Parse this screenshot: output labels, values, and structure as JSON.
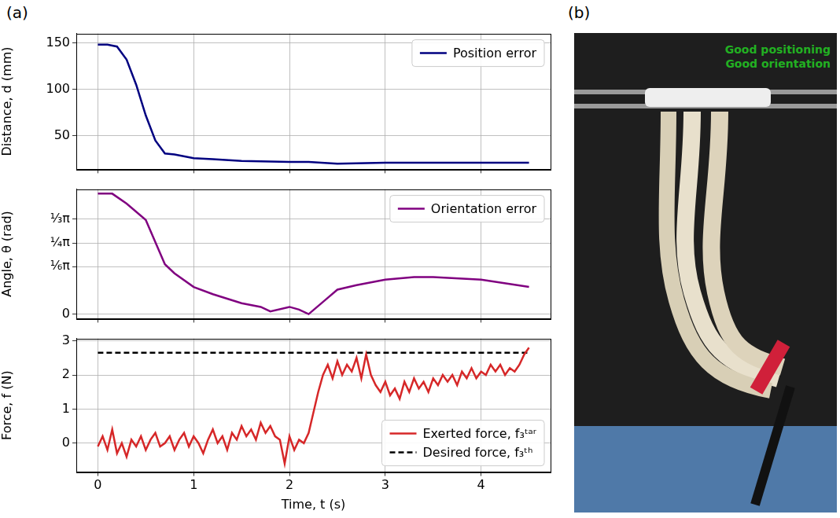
{
  "panel_labels": [
    "(a)",
    "(b)"
  ],
  "photo": {
    "texts": [
      "Good positioning",
      "Good orientation"
    ],
    "color": "#22b022"
  },
  "chart_data": [
    {
      "type": "line",
      "y_label": "Distance, d (mm)",
      "xlim": [
        -0.225,
        4.725
      ],
      "xticks": [
        0,
        1,
        2,
        3,
        4
      ],
      "ylim": [
        14,
        160
      ],
      "yticks": [
        50,
        100,
        150
      ],
      "grid": true,
      "legend": "upper right",
      "tick_labels": "y",
      "series": [
        {
          "name": "Position error",
          "color": "#000080",
          "line_style": "solid",
          "x": [
            0,
            0.1,
            0.2,
            0.3,
            0.4,
            0.5,
            0.6,
            0.7,
            0.8,
            1.0,
            1.2,
            1.5,
            2.0,
            2.2,
            2.5,
            3.0,
            3.5,
            4.0,
            4.5
          ],
          "values": [
            148,
            148,
            146,
            132,
            105,
            72,
            45,
            31,
            30,
            26,
            25,
            23,
            22,
            22,
            20,
            21,
            21,
            21,
            21
          ]
        }
      ]
    },
    {
      "type": "line",
      "y_label": "Angle, θ (rad)",
      "xlim": [
        -0.225,
        4.725
      ],
      "xticks": [
        0,
        1,
        2,
        3,
        4
      ],
      "ylim": [
        -0.05,
        1.38
      ],
      "yticks": [
        0,
        {
          "value": 0.5236,
          "label": "⅙π"
        },
        {
          "value": 0.7854,
          "label": "¼π"
        },
        {
          "value": 1.0472,
          "label": "⅓π"
        }
      ],
      "grid": true,
      "legend": "upper right",
      "tick_labels": "y",
      "series": [
        {
          "name": "Orientation error",
          "color": "#800080",
          "line_style": "solid",
          "x": [
            0,
            0.15,
            0.3,
            0.5,
            0.7,
            0.8,
            1.0,
            1.2,
            1.5,
            1.7,
            1.8,
            2.0,
            2.1,
            2.2,
            2.4,
            2.5,
            2.7,
            3.0,
            3.3,
            3.5,
            4.0,
            4.5
          ],
          "values": [
            1.33,
            1.33,
            1.22,
            1.04,
            0.55,
            0.45,
            0.3,
            0.22,
            0.12,
            0.08,
            0.03,
            0.08,
            0.05,
            0.0,
            0.18,
            0.27,
            0.32,
            0.38,
            0.41,
            0.41,
            0.38,
            0.3
          ]
        }
      ]
    },
    {
      "type": "line",
      "x_label": "Time, t (s)",
      "y_label": "Force, f (N)",
      "xlim": [
        -0.225,
        4.725
      ],
      "xticks": [
        0,
        1,
        2,
        3,
        4
      ],
      "ylim": [
        -0.85,
        3.07
      ],
      "yticks": [
        0,
        1,
        2,
        3
      ],
      "grid": true,
      "legend": "lower right",
      "series": [
        {
          "name": "Exerted force, f₃ᵗᵃʳ",
          "color": "#d62728",
          "line_style": "solid",
          "x": [
            0,
            0.05,
            0.1,
            0.15,
            0.2,
            0.25,
            0.3,
            0.35,
            0.4,
            0.45,
            0.5,
            0.55,
            0.6,
            0.65,
            0.7,
            0.75,
            0.8,
            0.85,
            0.9,
            0.95,
            1.0,
            1.05,
            1.1,
            1.15,
            1.2,
            1.25,
            1.3,
            1.35,
            1.4,
            1.45,
            1.5,
            1.55,
            1.6,
            1.65,
            1.7,
            1.75,
            1.8,
            1.85,
            1.9,
            1.95,
            2.0,
            2.05,
            2.1,
            2.15,
            2.2,
            2.25,
            2.3,
            2.35,
            2.4,
            2.45,
            2.5,
            2.55,
            2.6,
            2.65,
            2.7,
            2.75,
            2.8,
            2.85,
            2.9,
            2.95,
            3.0,
            3.05,
            3.1,
            3.15,
            3.2,
            3.25,
            3.3,
            3.35,
            3.4,
            3.45,
            3.5,
            3.55,
            3.6,
            3.65,
            3.7,
            3.75,
            3.8,
            3.85,
            3.9,
            3.95,
            4.0,
            4.05,
            4.1,
            4.15,
            4.2,
            4.25,
            4.3,
            4.35,
            4.4,
            4.45,
            4.5
          ],
          "values": [
            -0.1,
            0.2,
            -0.2,
            0.4,
            -0.3,
            0.0,
            -0.4,
            0.1,
            -0.1,
            0.2,
            -0.2,
            0.1,
            0.3,
            -0.1,
            0.0,
            0.2,
            -0.2,
            0.1,
            0.3,
            -0.1,
            0.2,
            0.0,
            -0.3,
            0.1,
            0.4,
            0.0,
            0.2,
            -0.2,
            0.3,
            0.1,
            0.5,
            0.2,
            0.4,
            0.1,
            0.6,
            0.3,
            0.5,
            0.2,
            0.1,
            -0.6,
            0.2,
            -0.2,
            0.1,
            0.0,
            0.3,
            0.9,
            1.5,
            2.0,
            2.3,
            1.9,
            2.4,
            2.0,
            2.3,
            2.1,
            2.5,
            1.9,
            2.6,
            2.0,
            1.7,
            1.5,
            1.8,
            1.4,
            1.6,
            1.3,
            1.8,
            1.5,
            1.9,
            1.6,
            1.8,
            1.5,
            1.9,
            1.7,
            2.0,
            1.8,
            2.0,
            1.7,
            2.1,
            1.9,
            2.2,
            1.9,
            2.1,
            2.0,
            2.3,
            2.1,
            2.3,
            2.0,
            2.2,
            2.1,
            2.3,
            2.6,
            2.8
          ]
        },
        {
          "name": "Desired force, f₃ᵗʰ",
          "color": "#000000",
          "line_style": "dashed",
          "x": [
            0,
            4.5
          ],
          "values": [
            2.65,
            2.65
          ]
        }
      ]
    }
  ]
}
